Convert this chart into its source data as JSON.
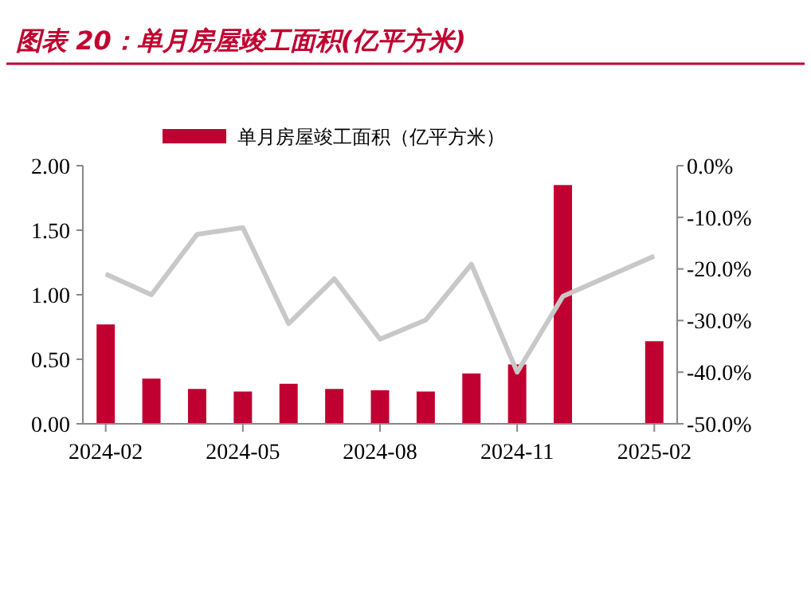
{
  "chart_data": {
    "type": "bar",
    "title": "图表 20：单月房屋竣工面积(亿平方米)",
    "categories": [
      "2024-02",
      null,
      null,
      "2024-05",
      null,
      null,
      "2024-08",
      null,
      null,
      "2024-11",
      null,
      null,
      "2025-02"
    ],
    "series": [
      {
        "name": "单月房屋竣工面积（亿平方米）",
        "color": "#c00030",
        "values": [
          0.77,
          0.35,
          0.27,
          0.25,
          0.31,
          0.27,
          0.26,
          0.25,
          0.39,
          0.46,
          1.85,
          null,
          0.64
        ]
      },
      {
        "type": "line",
        "axis": "y2",
        "color": "#c8c8c8",
        "values": [
          -21.0,
          -25.0,
          -13.3,
          -12.0,
          -30.6,
          -21.9,
          -33.6,
          -29.9,
          -19.1,
          -40.0,
          -25.3,
          null,
          -17.5
        ]
      }
    ],
    "ylim": [
      0,
      2
    ],
    "yticks": [
      {
        "value": 0,
        "label": "0.00"
      },
      {
        "value": 0.5,
        "label": "0.50"
      },
      {
        "value": 1,
        "label": "1.00"
      },
      {
        "value": 1.5,
        "label": "1.50"
      },
      {
        "value": 2,
        "label": "2.00"
      }
    ],
    "y2lim": [
      -50,
      0
    ],
    "y2ticks": [
      {
        "value": 0,
        "label": "0.0%"
      },
      {
        "value": -10,
        "label": "-10.0%"
      },
      {
        "value": -20,
        "label": "-20.0%"
      },
      {
        "value": -30,
        "label": "-30.0%"
      },
      {
        "value": -40,
        "label": "-40.0%"
      },
      {
        "value": -50,
        "label": "-50.0%"
      }
    ],
    "legend": "top",
    "grid": false
  }
}
